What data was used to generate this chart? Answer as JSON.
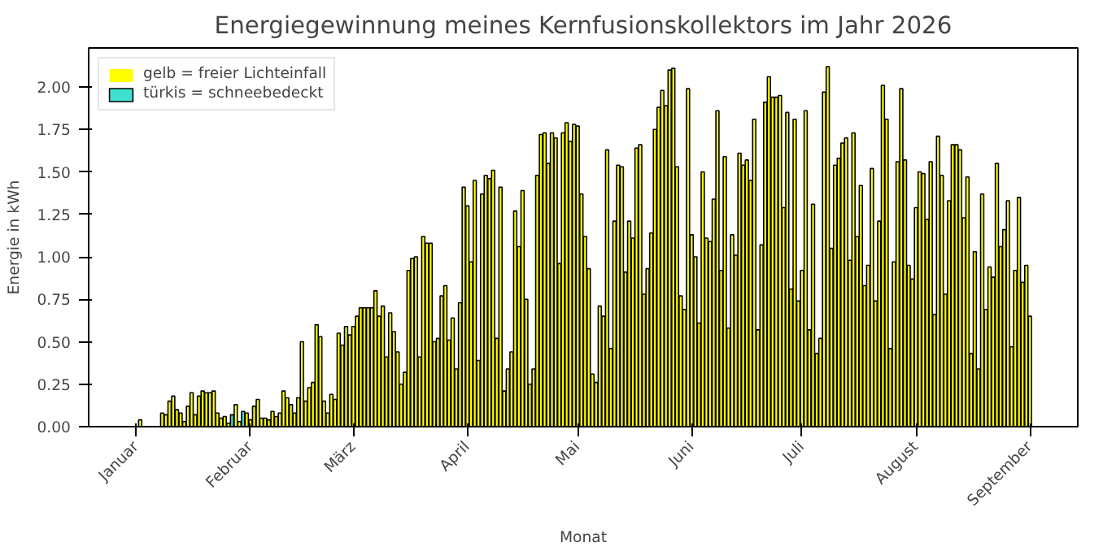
{
  "chart_data": {
    "type": "bar",
    "title": "Energiegewinnung meines Kernfusionskollektors im Jahr 2026",
    "xlabel": "Monat",
    "ylabel": "Energie in kWh",
    "x": [
      "2026-01-01",
      "2026-01-02",
      "2026-01-03",
      "2026-01-04",
      "2026-01-05",
      "2026-01-06",
      "2026-01-07",
      "2026-01-08",
      "2026-01-09",
      "2026-01-10",
      "2026-01-11",
      "2026-01-12",
      "2026-01-13",
      "2026-01-14",
      "2026-01-15",
      "2026-01-16",
      "2026-01-17",
      "2026-01-18",
      "2026-01-19",
      "2026-01-20",
      "2026-01-21",
      "2026-01-22",
      "2026-01-23",
      "2026-01-24",
      "2026-01-25",
      "2026-01-26",
      "2026-01-27",
      "2026-01-28",
      "2026-01-29",
      "2026-01-30",
      "2026-01-31",
      "2026-02-01",
      "2026-02-02",
      "2026-02-03",
      "2026-02-04",
      "2026-02-05",
      "2026-02-06",
      "2026-02-07",
      "2026-02-08",
      "2026-02-09",
      "2026-02-10",
      "2026-02-11",
      "2026-02-12",
      "2026-02-13",
      "2026-02-14",
      "2026-02-15",
      "2026-02-16",
      "2026-02-17",
      "2026-02-18",
      "2026-02-19",
      "2026-02-20",
      "2026-02-21",
      "2026-02-22",
      "2026-02-23",
      "2026-02-24",
      "2026-02-25",
      "2026-02-26",
      "2026-02-27",
      "2026-02-28",
      "2026-03-01",
      "2026-03-02",
      "2026-03-03",
      "2026-03-04",
      "2026-03-05",
      "2026-03-06",
      "2026-03-07",
      "2026-03-08",
      "2026-03-09",
      "2026-03-10",
      "2026-03-11",
      "2026-03-12",
      "2026-03-13",
      "2026-03-14",
      "2026-03-15",
      "2026-03-16",
      "2026-03-17",
      "2026-03-18",
      "2026-03-19",
      "2026-03-20",
      "2026-03-21",
      "2026-03-22",
      "2026-03-23",
      "2026-03-24",
      "2026-03-25",
      "2026-03-26",
      "2026-03-27",
      "2026-03-28",
      "2026-03-29",
      "2026-03-30",
      "2026-03-31",
      "2026-04-01",
      "2026-04-02",
      "2026-04-03",
      "2026-04-04",
      "2026-04-05",
      "2026-04-06",
      "2026-04-07",
      "2026-04-08",
      "2026-04-09",
      "2026-04-10",
      "2026-04-11",
      "2026-04-12",
      "2026-04-13",
      "2026-04-14",
      "2026-04-15",
      "2026-04-16",
      "2026-04-17",
      "2026-04-18",
      "2026-04-19",
      "2026-04-20",
      "2026-04-21",
      "2026-04-22",
      "2026-04-23",
      "2026-04-24",
      "2026-04-25",
      "2026-04-26",
      "2026-04-27",
      "2026-04-28",
      "2026-04-29",
      "2026-04-30",
      "2026-05-01",
      "2026-05-02",
      "2026-05-03",
      "2026-05-04",
      "2026-05-05",
      "2026-05-06",
      "2026-05-07",
      "2026-05-08",
      "2026-05-09",
      "2026-05-10",
      "2026-05-11",
      "2026-05-12",
      "2026-05-13",
      "2026-05-14",
      "2026-05-15",
      "2026-05-16",
      "2026-05-17",
      "2026-05-18",
      "2026-05-19",
      "2026-05-20",
      "2026-05-21",
      "2026-05-22",
      "2026-05-23",
      "2026-05-24",
      "2026-05-25",
      "2026-05-26",
      "2026-05-27",
      "2026-05-28",
      "2026-05-29",
      "2026-05-30",
      "2026-05-31",
      "2026-06-01",
      "2026-06-02",
      "2026-06-03",
      "2026-06-04",
      "2026-06-05",
      "2026-06-06",
      "2026-06-07",
      "2026-06-08",
      "2026-06-09",
      "2026-06-10",
      "2026-06-11",
      "2026-06-12",
      "2026-06-13",
      "2026-06-14",
      "2026-06-15",
      "2026-06-16",
      "2026-06-17",
      "2026-06-18",
      "2026-06-19",
      "2026-06-20",
      "2026-06-21",
      "2026-06-22",
      "2026-06-23",
      "2026-06-24",
      "2026-06-25",
      "2026-06-26",
      "2026-06-27",
      "2026-06-28",
      "2026-06-29",
      "2026-06-30",
      "2026-07-01",
      "2026-07-02",
      "2026-07-03",
      "2026-07-04",
      "2026-07-05",
      "2026-07-06",
      "2026-07-07",
      "2026-07-08",
      "2026-07-09",
      "2026-07-10",
      "2026-07-11",
      "2026-07-12",
      "2026-07-13",
      "2026-07-14",
      "2026-07-15",
      "2026-07-16",
      "2026-07-17",
      "2026-07-18",
      "2026-07-19",
      "2026-07-20",
      "2026-07-21",
      "2026-07-22",
      "2026-07-23",
      "2026-07-24",
      "2026-07-25",
      "2026-07-26",
      "2026-07-27",
      "2026-07-28",
      "2026-07-29",
      "2026-07-30",
      "2026-07-31",
      "2026-08-01",
      "2026-08-02",
      "2026-08-03",
      "2026-08-04",
      "2026-08-05",
      "2026-08-06",
      "2026-08-07",
      "2026-08-08",
      "2026-08-09",
      "2026-08-10",
      "2026-08-11",
      "2026-08-12",
      "2026-08-13",
      "2026-08-14",
      "2026-08-15",
      "2026-08-16",
      "2026-08-17",
      "2026-08-18",
      "2026-08-19",
      "2026-08-20",
      "2026-08-21",
      "2026-08-22",
      "2026-08-23",
      "2026-08-24",
      "2026-08-25",
      "2026-08-26",
      "2026-08-27",
      "2026-08-28",
      "2026-08-29",
      "2026-08-30",
      "2026-08-31",
      "2026-09-01"
    ],
    "series": [
      {
        "name": "gelb = freier Lichteinfall",
        "color": "#ffff00",
        "values": [
          0,
          0.04,
          0,
          0,
          0,
          0,
          0,
          0.08,
          0.07,
          0.15,
          0.18,
          0.1,
          0.08,
          0.03,
          0.12,
          0.2,
          0.07,
          0.18,
          0.21,
          0.2,
          0.2,
          0.21,
          0.08,
          0.05,
          0.06,
          0.02,
          null,
          0.13,
          0.03,
          null,
          0.08,
          0.04,
          0.12,
          0.16,
          0.05,
          0.05,
          0.04,
          0.09,
          0.06,
          0.08,
          0.21,
          0.17,
          0.13,
          0.08,
          0.17,
          0.5,
          0.15,
          0.23,
          0.26,
          0.6,
          0.53,
          0.15,
          0.08,
          0.19,
          0.16,
          0.55,
          0.48,
          0.59,
          0.54,
          0.59,
          0.65,
          0.7,
          0.7,
          0.7,
          0.7,
          0.8,
          0.65,
          0.71,
          0.41,
          0.67,
          0.56,
          0.44,
          0.25,
          0.32,
          0.92,
          0.99,
          1.0,
          0.41,
          1.12,
          1.08,
          1.08,
          0.5,
          0.52,
          0.77,
          0.83,
          0.51,
          0.64,
          0.34,
          0.73,
          1.41,
          1.3,
          0.97,
          1.45,
          0.39,
          1.37,
          1.48,
          1.46,
          1.51,
          0.52,
          1.41,
          0.21,
          0.34,
          0.44,
          1.27,
          1.06,
          1.39,
          0.75,
          0.25,
          0.34,
          1.48,
          1.72,
          1.73,
          1.55,
          1.73,
          1.7,
          0.96,
          1.73,
          1.79,
          1.68,
          1.78,
          1.77,
          1.37,
          1.12,
          0.93,
          0.31,
          0.26,
          0.71,
          0.65,
          1.63,
          0.46,
          1.21,
          1.54,
          1.53,
          0.91,
          1.21,
          1.11,
          1.64,
          1.66,
          0.78,
          0.93,
          1.14,
          1.75,
          1.88,
          1.98,
          1.89,
          2.1,
          2.11,
          1.53,
          0.77,
          0.69,
          1.99,
          1.13,
          1.0,
          0.61,
          1.5,
          1.11,
          1.09,
          1.34,
          1.86,
          0.92,
          1.59,
          0.58,
          1.13,
          1.01,
          1.61,
          1.54,
          1.57,
          1.45,
          1.81,
          0.57,
          1.07,
          1.91,
          2.06,
          1.94,
          1.94,
          1.95,
          1.29,
          1.85,
          0.81,
          1.81,
          0.74,
          0.92,
          1.86,
          0.57,
          1.31,
          0.43,
          0.52,
          1.97,
          2.12,
          1.05,
          1.54,
          1.58,
          1.67,
          1.7,
          0.98,
          1.73,
          1.12,
          1.42,
          0.83,
          0.95,
          1.52,
          0.74,
          1.21,
          2.01,
          1.81,
          0.46,
          0.97,
          1.56,
          1.99,
          1.57,
          0.95,
          0.87,
          1.29,
          1.5,
          1.49,
          1.22,
          1.56,
          0.66,
          1.71,
          1.48,
          0.78,
          1.33,
          1.66,
          1.66,
          1.63,
          1.23,
          1.47,
          0.43,
          1.03,
          0.34,
          1.37,
          0.69,
          0.94,
          0.88,
          1.55,
          1.06,
          1.16,
          1.33,
          0.47,
          0.92,
          1.35,
          0.85,
          0.95,
          0.65
        ]
      },
      {
        "name": "türkis = schneebedeckt",
        "color": "#40e0d0",
        "x": [
          "2026-01-27",
          "2026-01-30"
        ],
        "values": [
          0.07,
          0.09
        ]
      }
    ],
    "xlim": [
      "2025-12-19",
      "2026-09-14"
    ],
    "xticks": [
      {
        "value": "2026-01-01",
        "label": "Januar"
      },
      {
        "value": "2026-02-01",
        "label": "Februar"
      },
      {
        "value": "2026-03-01",
        "label": "März"
      },
      {
        "value": "2026-04-01",
        "label": "April"
      },
      {
        "value": "2026-05-01",
        "label": "Mai"
      },
      {
        "value": "2026-06-01",
        "label": "Juni"
      },
      {
        "value": "2026-07-01",
        "label": "Juli"
      },
      {
        "value": "2026-08-01",
        "label": "August"
      },
      {
        "value": "2026-09-01",
        "label": "September"
      }
    ],
    "ylim": [
      0,
      2.23
    ],
    "yticks": [
      {
        "value": 0,
        "label": "0.00"
      },
      {
        "value": 0.25,
        "label": "0.25"
      },
      {
        "value": 0.5,
        "label": "0.50"
      },
      {
        "value": 0.75,
        "label": "0.75"
      },
      {
        "value": 1,
        "label": "1.00"
      },
      {
        "value": 1.25,
        "label": "1.25"
      },
      {
        "value": 1.5,
        "label": "1.50"
      },
      {
        "value": 1.75,
        "label": "1.75"
      },
      {
        "value": 2,
        "label": "2.00"
      }
    ],
    "grid": false,
    "legend": "top left"
  }
}
